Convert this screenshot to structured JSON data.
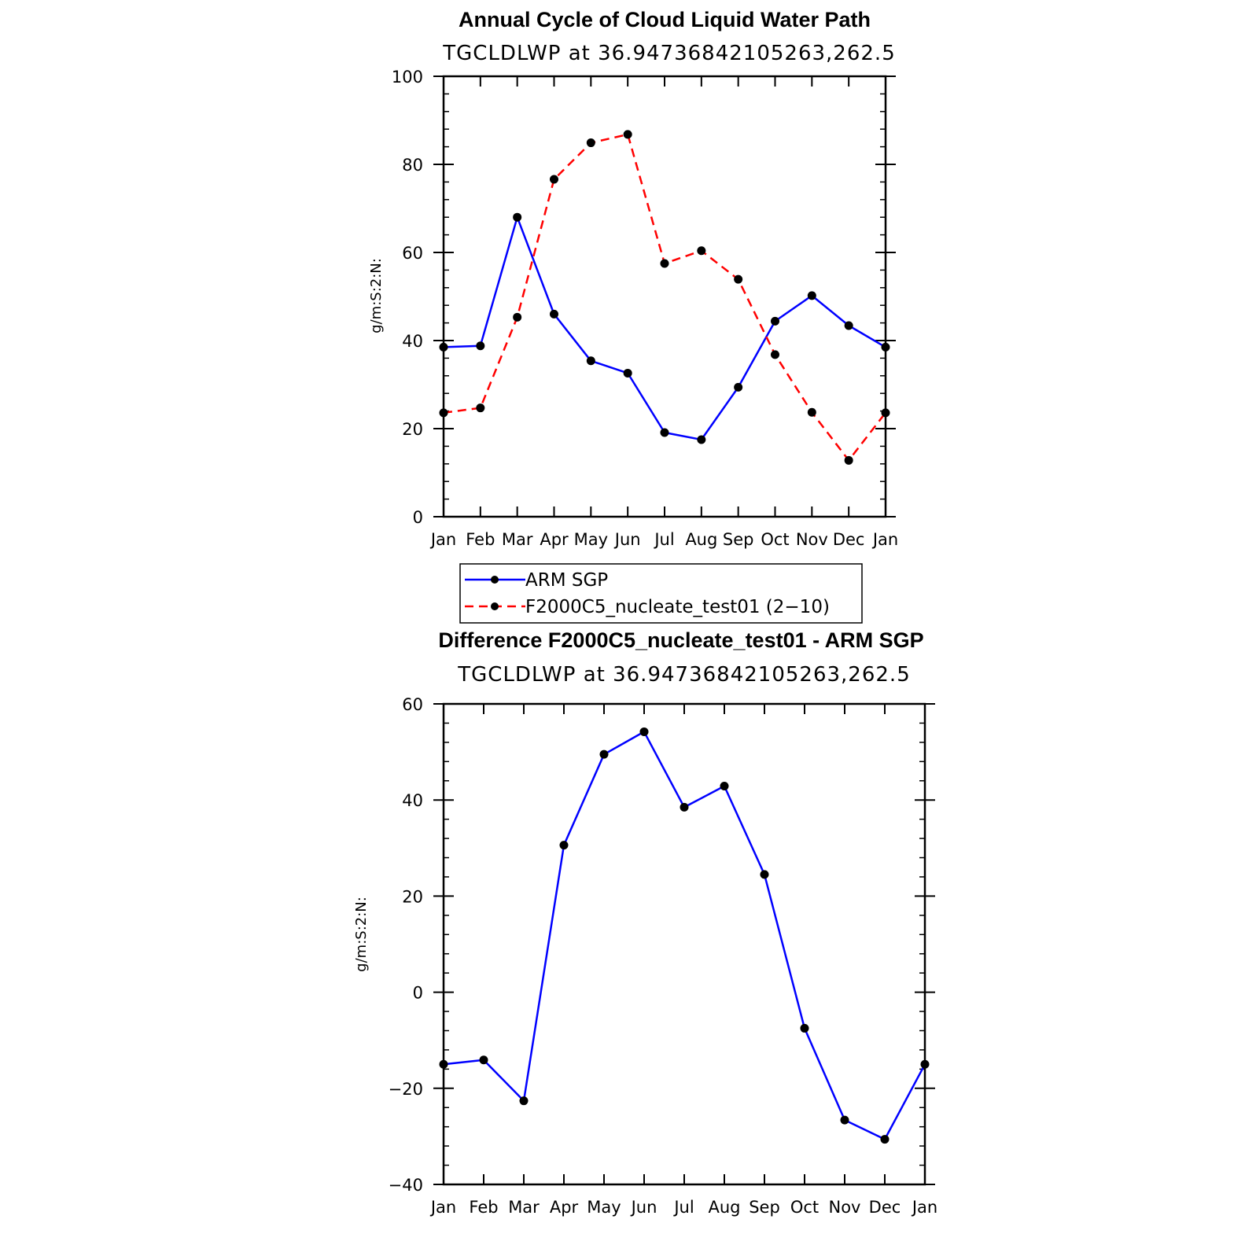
{
  "chart_data": [
    {
      "type": "line",
      "title": "Annual Cycle of Cloud Liquid Water Path",
      "subtitle": "TGCLDLWP  at  36.94736842105263,262.5",
      "ylabel": "g/m:S:2:N:",
      "xlabel": "",
      "categories": [
        "Jan",
        "Feb",
        "Mar",
        "Apr",
        "May",
        "Jun",
        "Jul",
        "Aug",
        "Sep",
        "Oct",
        "Nov",
        "Dec",
        "Jan"
      ],
      "ylim": [
        0,
        100
      ],
      "yticks": [
        "0",
        "20",
        "40",
        "60",
        "80",
        "100"
      ],
      "grid": false,
      "legend_position": "below",
      "series": [
        {
          "name": "ARM  SGP",
          "color": "#0000ff",
          "dash": "solid",
          "values": [
            38.5,
            38.8,
            68.0,
            46.0,
            35.4,
            32.6,
            19.1,
            17.5,
            29.4,
            44.4,
            50.2,
            43.4,
            38.5
          ]
        },
        {
          "name": "F2000C5_nucleate_test01 (2−10)",
          "color": "#ff0000",
          "dash": "dashed",
          "values": [
            23.6,
            24.7,
            45.3,
            76.6,
            84.9,
            86.8,
            57.5,
            60.4,
            53.9,
            36.8,
            23.7,
            12.8,
            23.6
          ]
        }
      ]
    },
    {
      "type": "line",
      "title": "Difference F2000C5_nucleate_test01 - ARM SGP",
      "subtitle": "TGCLDLWP  at  36.94736842105263,262.5",
      "ylabel": "g/m:S:2:N:",
      "xlabel": "",
      "categories": [
        "Jan",
        "Feb",
        "Mar",
        "Apr",
        "May",
        "Jun",
        "Jul",
        "Aug",
        "Sep",
        "Oct",
        "Nov",
        "Dec",
        "Jan"
      ],
      "ylim": [
        -40,
        60
      ],
      "yticks": [
        "−40",
        "−20",
        "0",
        "20",
        "40",
        "60"
      ],
      "grid": false,
      "series": [
        {
          "color": "#0000ff",
          "dash": "solid",
          "values": [
            -15.0,
            -14.1,
            -22.6,
            30.6,
            49.5,
            54.2,
            38.5,
            42.9,
            24.5,
            -7.5,
            -26.6,
            -30.6,
            -15.0
          ]
        }
      ]
    }
  ]
}
